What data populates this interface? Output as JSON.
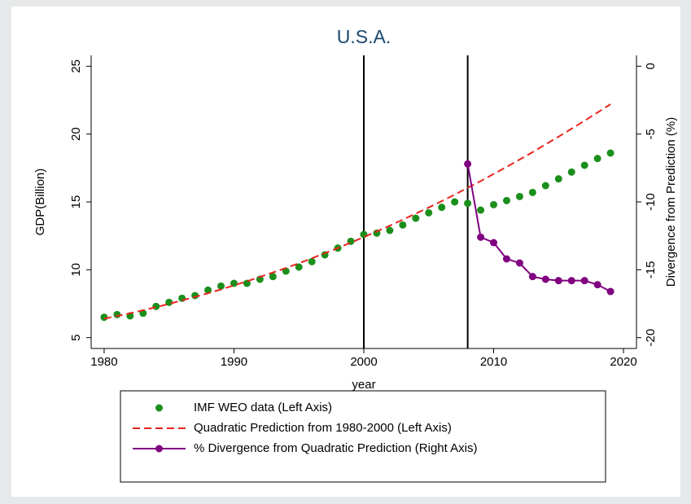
{
  "chart_data": {
    "type": "line",
    "title": "U.S.A.",
    "xlabel": "year",
    "ylabel": "GDP(Billion)",
    "y2label": "Divergence from Prediction (%)",
    "x": [
      1980,
      1981,
      1982,
      1983,
      1984,
      1985,
      1986,
      1987,
      1988,
      1989,
      1990,
      1991,
      1992,
      1993,
      1994,
      1995,
      1996,
      1997,
      1998,
      1999,
      2000,
      2001,
      2002,
      2003,
      2004,
      2005,
      2006,
      2007,
      2008,
      2009,
      2010,
      2011,
      2012,
      2013,
      2014,
      2015,
      2016,
      2017,
      2018,
      2019
    ],
    "xlim": [
      1979,
      2021
    ],
    "xticks": [
      1980,
      1990,
      2000,
      2010,
      2020
    ],
    "ylim": [
      4.2,
      25.8
    ],
    "yticks": [
      5,
      10,
      15,
      20,
      25
    ],
    "y2lim": [
      -20.8,
      0.8
    ],
    "y2ticks": [
      -20,
      -15,
      -10,
      -5,
      0
    ],
    "xlines": [
      2000,
      2008
    ],
    "series": [
      {
        "name": "IMF WEO data (Left Axis)",
        "color": "#1b8f1b",
        "mode": "markers",
        "values": [
          6.5,
          6.7,
          6.6,
          6.8,
          7.3,
          7.6,
          7.9,
          8.1,
          8.5,
          8.8,
          9.0,
          9.0,
          9.3,
          9.5,
          9.9,
          10.2,
          10.6,
          11.1,
          11.6,
          12.1,
          12.6,
          12.7,
          12.9,
          13.3,
          13.8,
          14.2,
          14.6,
          15.0,
          14.9,
          14.4,
          14.8,
          15.1,
          15.4,
          15.7,
          16.2,
          16.7,
          17.2,
          17.7,
          18.2,
          18.6
        ]
      },
      {
        "name": "Quadratic Prediction from 1980-2000 (Left Axis)",
        "color": "#e8241e",
        "mode": "dashed",
        "values": [
          6.4,
          6.59,
          6.8,
          7.02,
          7.25,
          7.49,
          7.74,
          8.0,
          8.27,
          8.55,
          8.85,
          9.15,
          9.47,
          9.8,
          10.13,
          10.48,
          10.85,
          11.22,
          11.6,
          12.0,
          12.41,
          12.83,
          13.25,
          13.69,
          14.14,
          14.59,
          15.06,
          15.54,
          16.04,
          16.54,
          17.06,
          17.59,
          18.12,
          18.67,
          19.24,
          19.81,
          20.39,
          20.98,
          21.59,
          22.2
        ]
      },
      {
        "name": "% Divergence from Quadratic Prediction (Right Axis)",
        "color": "#800080",
        "mode": "line-markers",
        "axis": "y2",
        "values": [
          null,
          null,
          null,
          null,
          null,
          null,
          null,
          null,
          null,
          null,
          null,
          null,
          null,
          null,
          null,
          null,
          null,
          null,
          null,
          null,
          null,
          null,
          null,
          null,
          null,
          null,
          null,
          null,
          -7.2,
          -12.6,
          -13.0,
          -14.2,
          -14.5,
          -15.5,
          -15.7,
          -15.8,
          -15.8,
          -15.8,
          -16.1,
          -16.6
        ]
      }
    ]
  }
}
